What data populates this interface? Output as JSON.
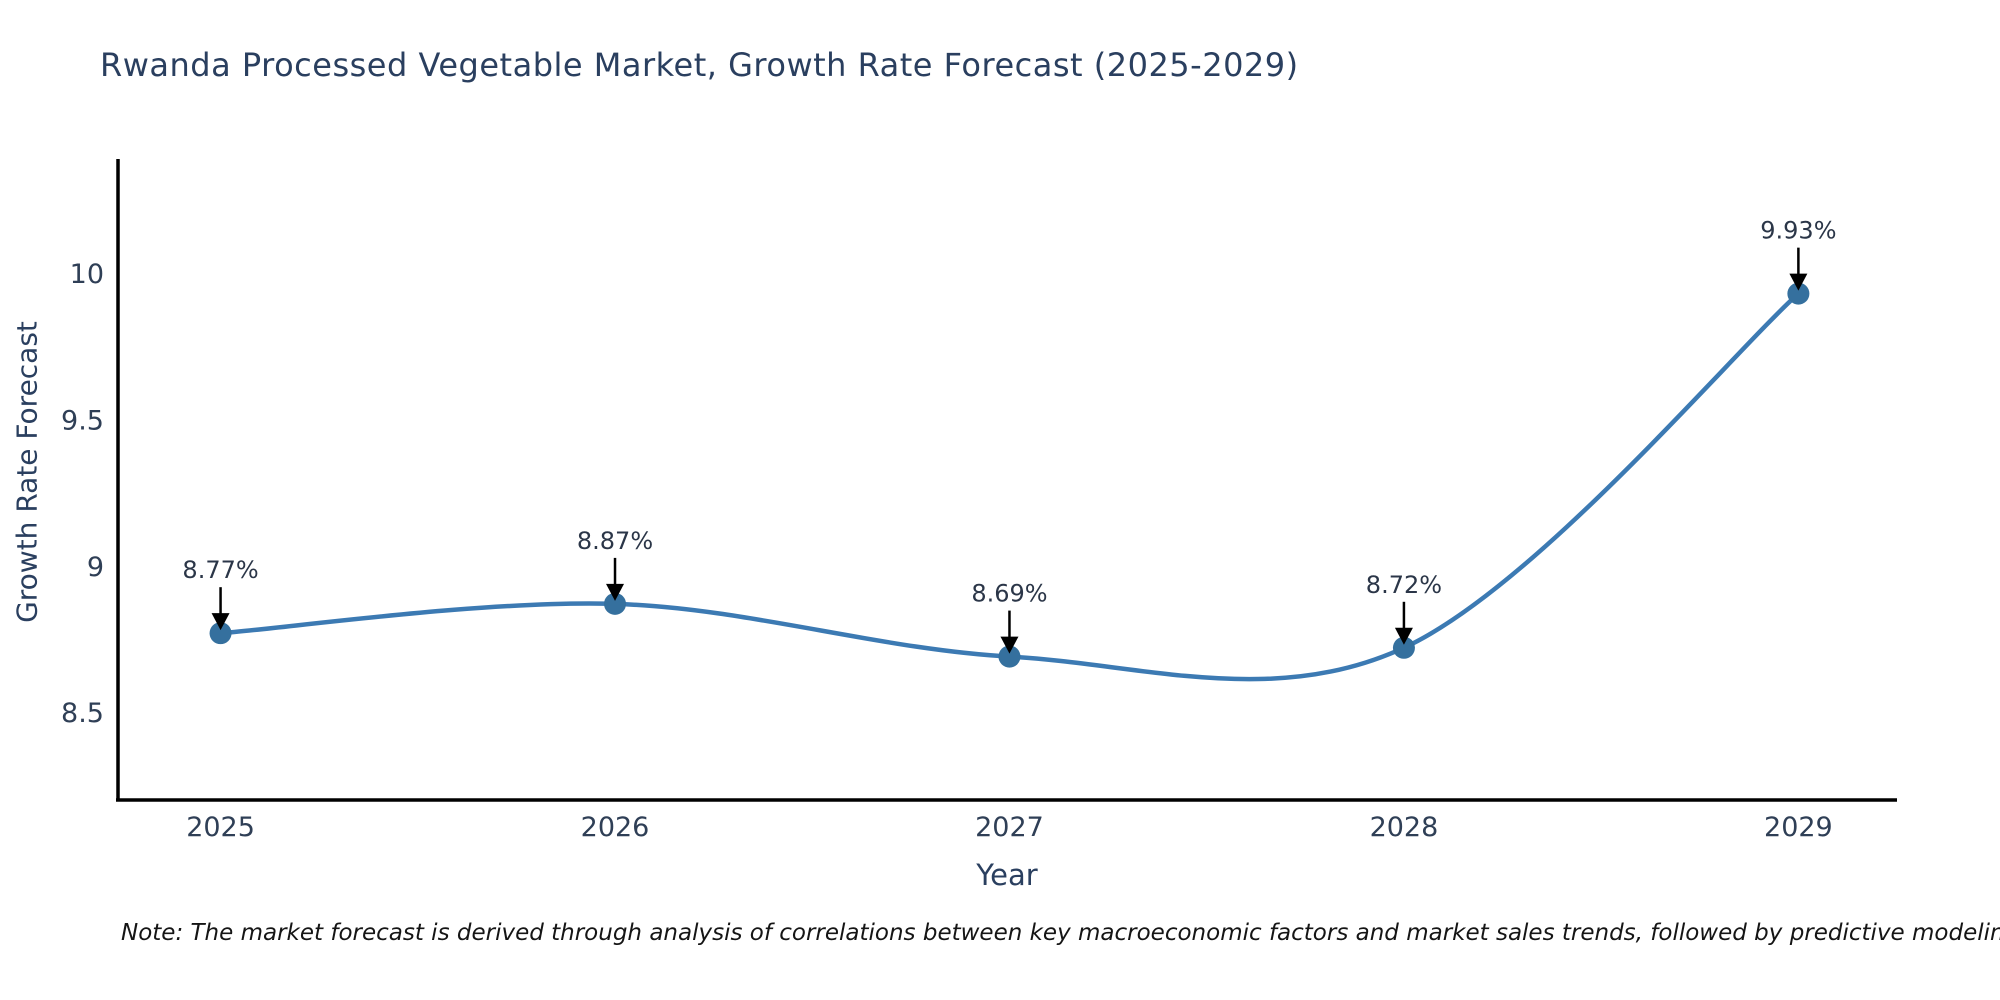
{
  "note": "Note: The market forecast is derived through analysis of correlations between key macroeconomic factors and market sales trends, followed by predictive modeling to project future sales",
  "chart_data": {
    "type": "line",
    "title": "Rwanda Processed Vegetable Market, Growth Rate Forecast (2025-2029)",
    "xlabel": "Year",
    "ylabel": "Growth Rate Forecast",
    "x": [
      2025,
      2026,
      2027,
      2028,
      2029
    ],
    "x_labels": [
      "2025",
      "2026",
      "2027",
      "2028",
      "2029"
    ],
    "values": [
      8.77,
      8.87,
      8.69,
      8.72,
      9.93
    ],
    "point_labels": [
      "8.77%",
      "8.87%",
      "8.69%",
      "8.72%",
      "9.93%"
    ],
    "yticks": [
      8.5,
      9,
      9.5,
      10
    ],
    "ytick_labels": [
      "8.5",
      "9",
      "9.5",
      "10"
    ],
    "xlim": [
      2024.74,
      2029.25
    ],
    "ylim": [
      8.2,
      10.39
    ],
    "line_shape": "spline",
    "grid": false,
    "legend": "none",
    "marker_size": 11,
    "line_width": 4.5,
    "colors": {
      "line": "#3c7ab3",
      "marker": "#35709e",
      "axis": "#000000",
      "arrow": "#000000",
      "title_text": "#2a3f5f",
      "axis_label_text": "#2a3f5f",
      "tick_text": "#2f3f56",
      "annotation_text": "#2b3648",
      "note_text": "#151515",
      "background": "#ffffff"
    }
  }
}
